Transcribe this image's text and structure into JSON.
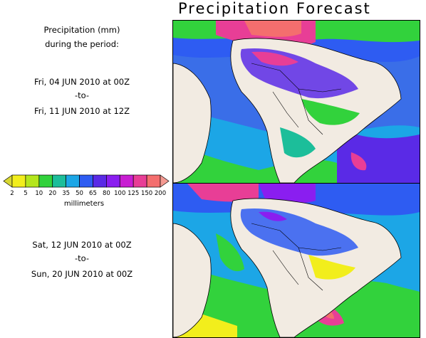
{
  "title": "Precipitation Forecast",
  "intro": {
    "line1": "Precipitation (mm)",
    "line2": "during the period:"
  },
  "period_1": {
    "start": "Fri, 04 JUN 2010 at 00Z",
    "separator": "-to-",
    "end": "Fri, 11 JUN 2010 at 12Z"
  },
  "period_2": {
    "start": "Sat, 12 JUN 2010 at 00Z",
    "separator": "-to-",
    "end": "Sun, 20 JUN 2010 at 00Z"
  },
  "color_scale": {
    "unit": "millimeters",
    "labels": [
      "2",
      "5",
      "10",
      "20",
      "35",
      "50",
      "65",
      "80",
      "100",
      "125",
      "150",
      "200"
    ],
    "colors": [
      "#d8d832",
      "#f2ee1c",
      "#b4e61c",
      "#32d23c",
      "#1cbe9a",
      "#1ca6e6",
      "#2e5cf2",
      "#5a2ae6",
      "#8a1ef0",
      "#c81ed2",
      "#e83e96",
      "#f46e6e",
      "#f49a92"
    ]
  },
  "map_colors": {
    "land": "#f2ebe2",
    "ocean": "#ffffff",
    "border": "#000000"
  }
}
